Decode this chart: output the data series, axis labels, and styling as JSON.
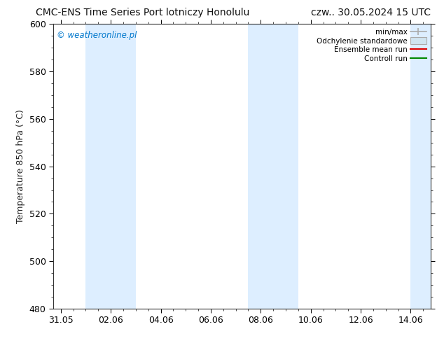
{
  "title_left": "CMC-ENS Time Series Port lotniczy Honolulu",
  "title_right": "czw.. 30.05.2024 15 UTC",
  "ylabel": "Temperature 850 hPa (°C)",
  "ylim": [
    480,
    600
  ],
  "yticks": [
    480,
    500,
    520,
    540,
    560,
    580,
    600
  ],
  "xtick_labels": [
    "31.05",
    "02.06",
    "04.06",
    "06.06",
    "08.06",
    "10.06",
    "12.06",
    "14.06"
  ],
  "xtick_positions": [
    0,
    2,
    4,
    6,
    8,
    10,
    12,
    14
  ],
  "xlim": [
    -0.3,
    14.8
  ],
  "watermark": "© weatheronline.pl",
  "watermark_color": "#0077cc",
  "bg_color": "#ffffff",
  "plot_bg_color": "#ffffff",
  "shaded_bands": [
    {
      "x_start": 1.0,
      "x_end": 3.0,
      "color": "#ddeeff"
    },
    {
      "x_start": 7.5,
      "x_end": 9.5,
      "color": "#ddeeff"
    },
    {
      "x_start": 14.0,
      "x_end": 14.8,
      "color": "#ddeeff"
    }
  ],
  "legend_items": [
    {
      "label": "min/max",
      "type": "errorbar"
    },
    {
      "label": "Odchylenie standardowe",
      "type": "band"
    },
    {
      "label": "Ensemble mean run",
      "type": "line",
      "color": "#dd0000"
    },
    {
      "label": "Controll run",
      "type": "line",
      "color": "#008800"
    }
  ],
  "minmax_color": "#aaaaaa",
  "std_face_color": "#d0e4f0",
  "std_edge_color": "#aaaaaa",
  "tick_color": "#000000",
  "spine_color": "#333333",
  "font_size": 9,
  "title_font_size": 10,
  "watermark_font_size": 8.5
}
